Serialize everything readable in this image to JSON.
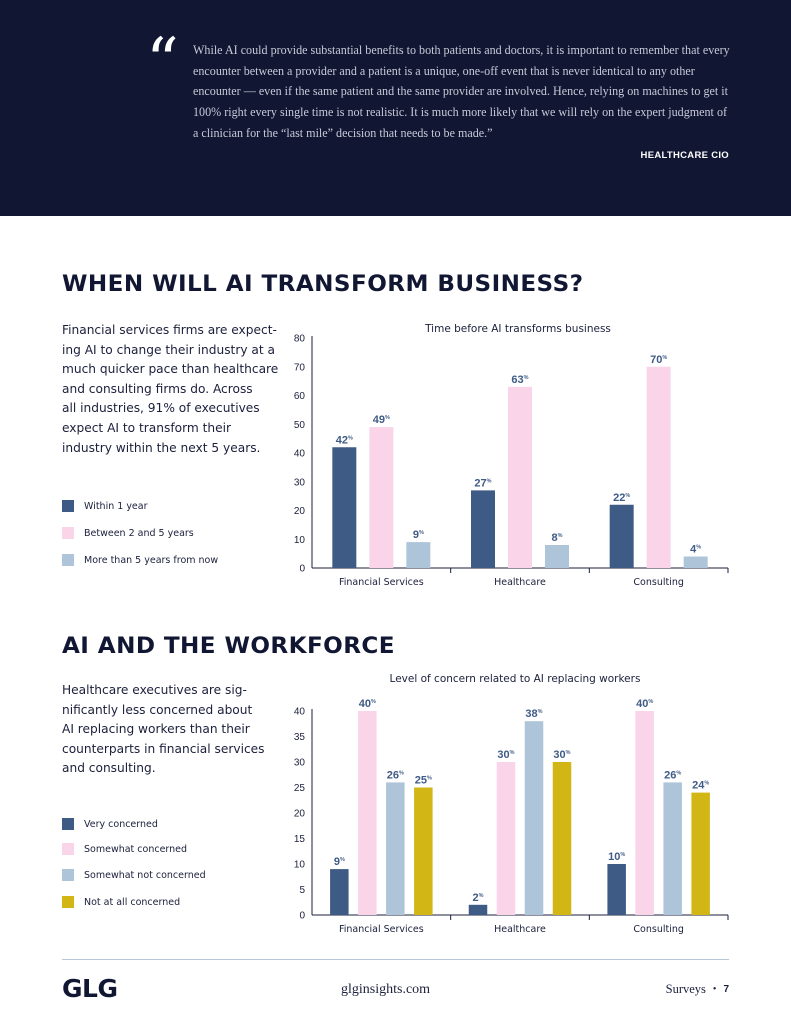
{
  "quote": {
    "mark": "“",
    "text": "While AI could provide substantial benefits to both patients and doctors, it is important to remember that every encounter between a provider and a patient is a unique, one-off event that is never identical to any other encounter — even if the same patient and the same provider are involved. Hence, relying on machines to get it 100% right every single time is not realistic. It is much more likely that we will rely on the expert judgment of a clinician for the “last mile” decision that needs to be made.”",
    "attribution": "HEALTHCARE CIO"
  },
  "section1": {
    "title": "WHEN WILL AI TRANSFORM BUSINESS?",
    "body_lines": [
      "Financial services firms are expect-",
      "ing AI to change their industry at a",
      "much quicker pace than healthcare",
      "and consulting firms do. Across",
      "all industries, 91% of executives",
      "expect AI to transform their",
      "industry within the next 5 years."
    ]
  },
  "section2": {
    "title": "AI AND THE WORKFORCE",
    "body_lines": [
      "Healthcare executives are sig-",
      "nificantly less concerned about",
      "AI replacing workers than their",
      "counterparts in financial services",
      "and consulting."
    ]
  },
  "chart_data": [
    {
      "type": "bar",
      "title": "Time before AI transforms business",
      "categories": [
        "Financial Services",
        "Healthcare",
        "Consulting"
      ],
      "series": [
        {
          "name": "Within 1 year",
          "color": "#3e5b85",
          "values": [
            42,
            27,
            22
          ]
        },
        {
          "name": "Between 2 and 5 years",
          "color": "#fad4e9",
          "values": [
            49,
            63,
            70
          ]
        },
        {
          "name": "More than 5 years from now",
          "color": "#aec4d9",
          "values": [
            9,
            8,
            4
          ]
        }
      ],
      "ylim": [
        0,
        80
      ],
      "yticks": [
        0,
        10,
        20,
        30,
        40,
        50,
        60,
        70,
        80
      ],
      "value_suffix": "%",
      "xlabel": "",
      "ylabel": "",
      "legend": "left"
    },
    {
      "type": "bar",
      "title": "Level of concern related to AI replacing workers",
      "categories": [
        "Financial Services",
        "Healthcare",
        "Consulting"
      ],
      "series": [
        {
          "name": "Very concerned",
          "color": "#3e5b85",
          "values": [
            9,
            2,
            10
          ]
        },
        {
          "name": "Somewhat concerned",
          "color": "#fad4e9",
          "values": [
            40,
            30,
            40
          ]
        },
        {
          "name": "Somewhat not concerned",
          "color": "#aec4d9",
          "values": [
            26,
            38,
            26
          ]
        },
        {
          "name": "Not at all concerned",
          "color": "#d2b616",
          "values": [
            25,
            30,
            24
          ]
        }
      ],
      "ylim": [
        0,
        40
      ],
      "yticks": [
        0,
        5,
        10,
        15,
        20,
        25,
        30,
        35,
        40
      ],
      "value_suffix": "%",
      "xlabel": "",
      "ylabel": "",
      "legend": "left"
    }
  ],
  "footer": {
    "logo": "GLG",
    "url": "glginsights.com",
    "section": "Surveys",
    "bullet": "•",
    "page": "7"
  }
}
